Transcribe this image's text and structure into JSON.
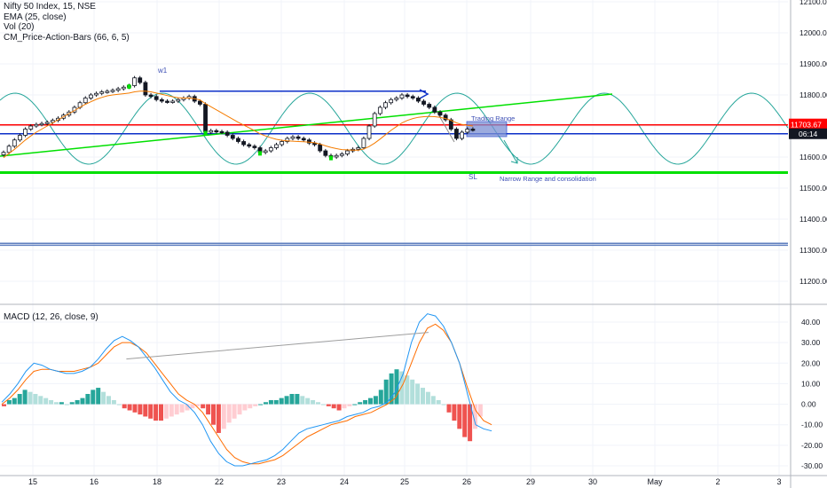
{
  "header": {
    "symbol": "Nifty 50 Index, 15, NSE",
    "ema": "EMA (25, close)",
    "vol": "Vol (20)",
    "cm": "CM_Price-Action-Bars (66, 6, 5)"
  },
  "macd_header": "MACD (12, 26, close, 9)",
  "price_badge": {
    "value": "11703.67",
    "timer": "06:14",
    "red_color": "#ff0000",
    "timer_bg": "#131722"
  },
  "annotations": {
    "w1": "w1",
    "trading_range": "Trading Range",
    "sl": "SL",
    "narrow": "Narrow Range and consolidation"
  },
  "colors": {
    "bull": "#131722",
    "bear": "#131722",
    "ema": "#f57c00",
    "sine": "#26a69a",
    "trend": "#00e000",
    "red_line": "#ff0000",
    "blue_line": "#0c2fc8",
    "hist_pos_strong": "#26a69a",
    "hist_pos_weak": "#b2dfdb",
    "hist_neg_strong": "#ef5350",
    "hist_neg_weak": "#ffcdd2",
    "macd": "#2196f3",
    "signal": "#ff6d00",
    "box": "#7b8fd4"
  },
  "chart_data": [
    {
      "type": "line",
      "title": "Nifty 50 Index, 15, NSE",
      "x_tick_labels": [
        "15",
        "16",
        "18",
        "22",
        "23",
        "24",
        "25",
        "26",
        "29",
        "30",
        "May",
        "2",
        "3"
      ],
      "y_tick_labels": [
        "12100.00",
        "12000.00",
        "11900.00",
        "11800.00",
        "11700.00",
        "11600.00",
        "11500.00",
        "11400.00",
        "11300.00",
        "11200.00"
      ],
      "ylim": [
        11130,
        12110
      ],
      "series": [
        {
          "close": [
            11615,
            11635,
            11655,
            11670,
            11690,
            11700,
            11705,
            11708,
            11712,
            11718,
            11725,
            11735,
            11745,
            11760,
            11775,
            11790,
            11800,
            11805,
            11810,
            11812,
            11815,
            11820,
            11825,
            11830,
            11855,
            11840,
            11800,
            11795,
            11785,
            11780,
            11778,
            11780,
            11785,
            11790,
            11795,
            11780,
            11770,
            11680,
            11685,
            11682,
            11680,
            11670,
            11660,
            11650,
            11640,
            11635,
            11630,
            11615,
            11620,
            11630,
            11640,
            11650,
            11660,
            11665,
            11660,
            11655,
            11645,
            11640,
            11620,
            11605,
            11600,
            11605,
            11610,
            11620,
            11625,
            11630,
            11660,
            11700,
            11740,
            11760,
            11775,
            11785,
            11790,
            11800,
            11795,
            11790,
            11780,
            11770,
            11760,
            11745,
            11735,
            11720,
            11690,
            11660,
            11680,
            11690,
            11688
          ]
        },
        {
          "name": "EMA (25, close)",
          "values": [
            11598,
            11612,
            11625,
            11640,
            11655,
            11668,
            11680,
            11690,
            11700,
            11710,
            11720,
            11730,
            11740,
            11750,
            11760,
            11770,
            11778,
            11786,
            11792,
            11797,
            11800,
            11802,
            11804,
            11806,
            11810,
            11812,
            11812,
            11810,
            11806,
            11802,
            11798,
            11794,
            11791,
            11790,
            11790,
            11788,
            11784,
            11772,
            11762,
            11752,
            11742,
            11732,
            11722,
            11712,
            11703,
            11694,
            11685,
            11675,
            11668,
            11662,
            11657,
            11654,
            11652,
            11651,
            11650,
            11649,
            11648,
            11646,
            11642,
            11636,
            11631,
            11627,
            11624,
            11623,
            11622,
            11622,
            11626,
            11634,
            11645,
            11658,
            11672,
            11686,
            11698,
            11710,
            11718,
            11724,
            11728,
            11730,
            11731,
            11730,
            11728,
            11724,
            11718,
            11710,
            11705,
            11702,
            11700
          ]
        }
      ],
      "lines": {
        "red_level": 11703.67,
        "blue_level": 11675,
        "w1_high": 11812,
        "green_support": 11550,
        "double_blue": [
          11322,
          11316
        ]
      }
    },
    {
      "type": "bar",
      "title": "MACD (12, 26, close, 9)",
      "y_tick_labels": [
        "40.00",
        "30.00",
        "20.00",
        "10.00",
        "0.00",
        "-10.00",
        "-20.00",
        "-30.00"
      ],
      "ylim": [
        -34,
        47
      ],
      "histogram": [
        -1,
        2,
        3,
        5,
        7,
        6,
        5,
        4,
        3,
        2,
        1,
        1,
        0,
        1,
        2,
        3,
        5,
        7,
        8,
        6,
        4,
        2,
        0,
        -2,
        -3,
        -4,
        -5,
        -6,
        -7,
        -8,
        -8,
        -7,
        -6,
        -5,
        -4,
        -3,
        -2,
        -1,
        -2,
        -5,
        -10,
        -14,
        -12,
        -9,
        -7,
        -5,
        -3,
        -2,
        -1,
        0,
        1,
        2,
        2,
        3,
        4,
        5,
        5,
        4,
        3,
        2,
        1,
        0,
        -1,
        -2,
        -3,
        -2,
        -1,
        0,
        1,
        2,
        3,
        4,
        7,
        12,
        15,
        17,
        16,
        14,
        12,
        10,
        8,
        6,
        4,
        2,
        0,
        -4,
        -8,
        -12,
        -16,
        -18,
        -12,
        -6
      ],
      "macd": [
        1,
        5,
        10,
        16,
        20,
        19,
        17,
        16,
        15,
        15,
        16,
        18,
        22,
        27,
        31,
        33,
        31,
        28,
        23,
        18,
        12,
        6,
        2,
        0,
        -4,
        -10,
        -18,
        -24,
        -28,
        -30,
        -30,
        -29,
        -28,
        -27,
        -25,
        -22,
        -18,
        -14,
        -12,
        -11,
        -10,
        -9,
        -8,
        -6,
        -5,
        -4,
        -2,
        -1,
        1,
        6,
        15,
        30,
        40,
        44,
        43,
        38,
        30,
        20,
        5,
        -10,
        -12,
        -13
      ],
      "signal": [
        0,
        3,
        7,
        12,
        16,
        17,
        17,
        16,
        16,
        16,
        17,
        18,
        20,
        24,
        28,
        30,
        30,
        28,
        25,
        20,
        15,
        10,
        5,
        2,
        0,
        -4,
        -10,
        -16,
        -22,
        -26,
        -28,
        -29,
        -29,
        -28,
        -27,
        -25,
        -22,
        -19,
        -16,
        -14,
        -12,
        -10,
        -9,
        -8,
        -6,
        -5,
        -4,
        -2,
        0,
        3,
        10,
        20,
        30,
        37,
        39,
        36,
        30,
        20,
        8,
        -3,
        -8,
        -10
      ],
      "divergence_line": [
        [
          9,
          22
        ],
        [
          21,
          35
        ]
      ]
    }
  ]
}
